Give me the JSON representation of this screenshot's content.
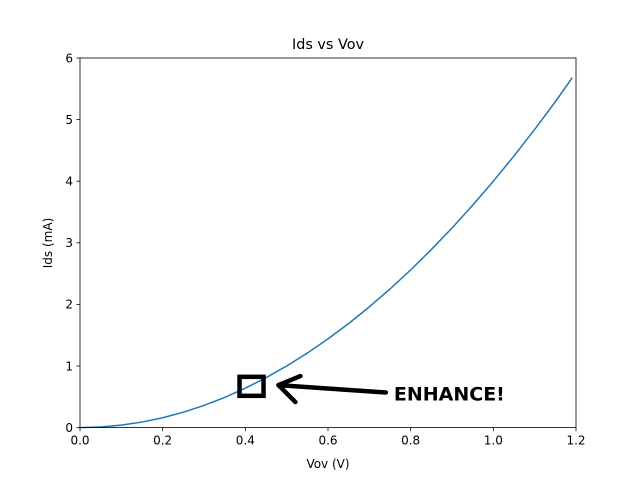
{
  "chart_data": {
    "type": "line",
    "title": "Ids vs Vov",
    "xlabel": "Vov (V)",
    "ylabel": "Ids (mA)",
    "xlim": [
      0,
      1.2
    ],
    "ylim": [
      0,
      6
    ],
    "x_ticks": [
      0.0,
      0.2,
      0.4,
      0.6,
      0.8,
      1.0,
      1.2
    ],
    "x_tick_labels": [
      "0.0",
      "0.2",
      "0.4",
      "0.6",
      "0.8",
      "1.0",
      "1.2"
    ],
    "y_ticks": [
      0,
      1,
      2,
      3,
      4,
      5,
      6
    ],
    "y_tick_labels": [
      "0",
      "1",
      "2",
      "3",
      "4",
      "5",
      "6"
    ],
    "grid": false,
    "series": [
      {
        "color": "#1f77b4",
        "x": [
          0.0,
          0.05,
          0.1,
          0.15,
          0.2,
          0.25,
          0.3,
          0.35,
          0.4,
          0.45,
          0.5,
          0.55,
          0.6,
          0.65,
          0.7,
          0.75,
          0.8,
          0.85,
          0.9,
          0.95,
          1.0,
          1.05,
          1.1,
          1.15,
          1.19
        ],
        "y": [
          0.0,
          0.01,
          0.04,
          0.09,
          0.16,
          0.25,
          0.36,
          0.49,
          0.64,
          0.81,
          1.0,
          1.21,
          1.44,
          1.69,
          1.96,
          2.25,
          2.56,
          2.89,
          3.24,
          3.61,
          4.0,
          4.41,
          4.84,
          5.29,
          5.67
        ]
      }
    ],
    "annotations": [
      {
        "text": "ENHANCE!",
        "box_center": [
          0.415,
          0.67
        ],
        "arrow_from": [
          0.74,
          0.57
        ],
        "arrow_to": [
          0.48,
          0.69
        ]
      }
    ]
  }
}
